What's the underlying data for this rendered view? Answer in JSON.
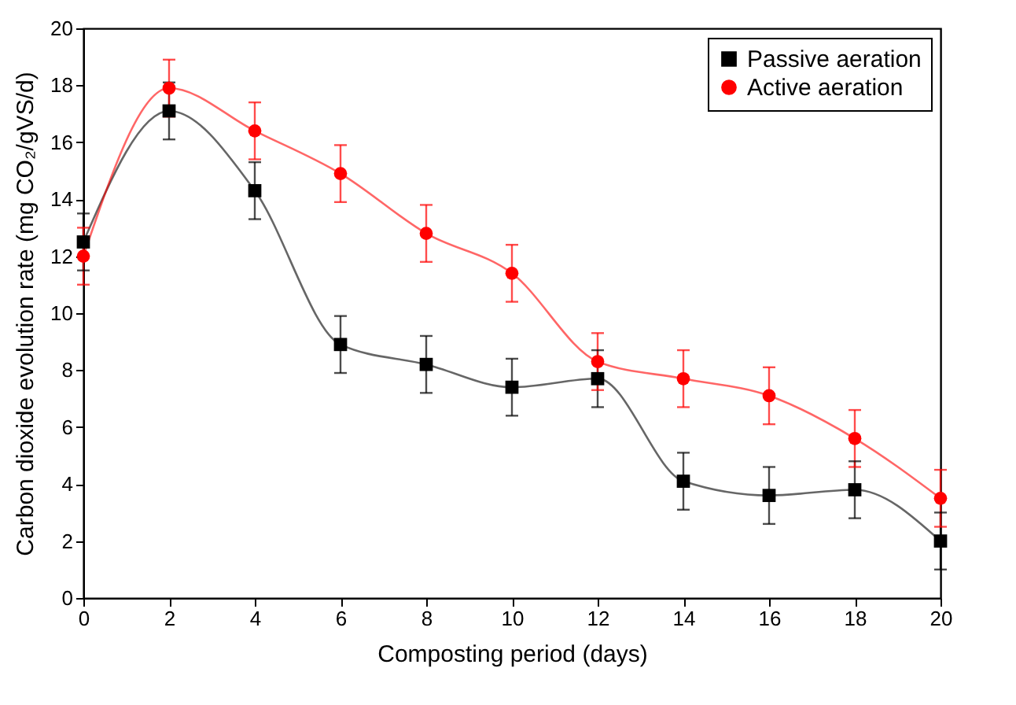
{
  "chart_data": {
    "type": "line",
    "xlabel": "Composting period (days)",
    "ylabel": "Carbon dioxide evolution rate (mg CO₂/gVS/d)",
    "x": [
      0,
      2,
      4,
      6,
      8,
      10,
      12,
      14,
      16,
      18,
      20
    ],
    "xlim": [
      0,
      20
    ],
    "xticks": [
      0,
      2,
      4,
      6,
      8,
      10,
      12,
      14,
      16,
      18,
      20
    ],
    "ylim": [
      0,
      20
    ],
    "yticks": [
      0,
      2,
      4,
      6,
      8,
      10,
      12,
      14,
      16,
      18,
      20
    ],
    "grid": false,
    "legend": "top right",
    "line_style": "solid",
    "series": [
      {
        "name": "Passive aeration",
        "color": "#000000",
        "marker": "square",
        "values": [
          12.5,
          17.1,
          14.3,
          8.9,
          8.2,
          7.4,
          7.7,
          4.1,
          3.6,
          3.8,
          2.0
        ],
        "errors": [
          1,
          1,
          1,
          1,
          1,
          1,
          1,
          1,
          1,
          1,
          1
        ]
      },
      {
        "name": "Active aeration",
        "color": "#ff0000",
        "marker": "circle",
        "values": [
          12.0,
          17.9,
          16.4,
          14.9,
          12.8,
          11.4,
          8.3,
          7.7,
          7.1,
          5.6,
          3.5
        ],
        "errors": [
          1,
          1,
          1,
          1,
          1,
          1,
          1,
          1,
          1,
          1,
          1
        ]
      }
    ]
  }
}
